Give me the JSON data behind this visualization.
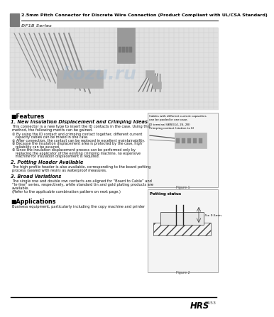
{
  "title": "2.5mm Pitch Connector for Discrete Wire Connection (Product Compliant with UL/CSA Standard)",
  "series": "DF1B Series",
  "bg_color": "#ffffff",
  "header_bar_color": "#7a7a7a",
  "header_line_color": "#000000",
  "features_title": "■Features",
  "feature1_title": "1. New Insulation Displacement and Crimping Ideas",
  "feature1_body1": "This connector is a new type to insert the ID contacts in the case. Using this",
  "feature1_body2": "method, the following merits can be gained.",
  "feature1_items": [
    "① By using the ID contact and crimping contact together, different current",
    "   capacity cables can be mixed in one case.",
    "② After connection, the contact can be replaced in excellent maintainability.",
    "③ Because the insulation displacement area is protected by the case, high",
    "   reliability can be assured.",
    "④ Since the insulation displacement process can be performed only by",
    "   replacing the applicator of the existing crimping machine, no expensive",
    "   machine for insulation displacement is required."
  ],
  "feature2_title": "2. Potting Header Available",
  "feature2_body1": "The high profile header is also available, corresponding to the board potting",
  "feature2_body2": "process (sealed with resin) as waterproof measures.",
  "feature3_title": "3. Broad Variations",
  "feature3_body1": "The single row and double row contacts are aligned for “Board to Cable” and",
  "feature3_body2": "“In-line” series, respectively, while standard tin and gold plating products are",
  "feature3_body3": "available.",
  "feature3_body4": "(Refer to the applicable combination pattern on next page.)",
  "applications_title": "■Applications",
  "applications_body": "Business equipment, particularly including the copy machine and printer",
  "figure1_caption": "Figure 1",
  "figure2_caption": "Figure 2",
  "fig1_label1a": "Cables with different current capacities",
  "fig1_label1b": "can be pooled in one case.",
  "fig1_label2a": "ID terminal (AWG14, 26, 28)",
  "fig1_label2b": "Crimping contact (station to 6)",
  "potting_title": "Potting status",
  "potting_label": "10.5± 0.5min.",
  "hrs_text": "HRS",
  "page_num": "B153",
  "footer_line_color": "#000000",
  "watermark": "kozu.ru"
}
